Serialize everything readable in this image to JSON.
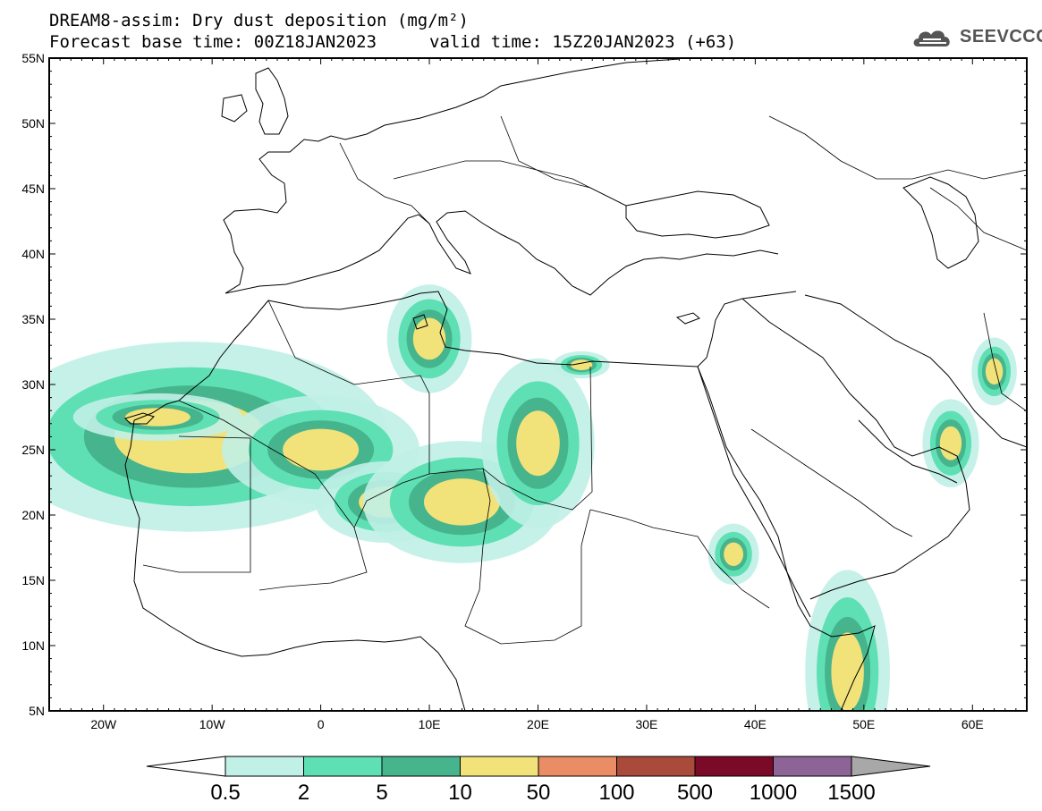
{
  "title": {
    "line1": "DREAM8-assim: Dry dust deposition (mg/m²)",
    "base": "Forecast base time: 00Z18JAN2023",
    "valid": "valid time: 15Z20JAN2023 (+63)"
  },
  "logo": {
    "text": "SEEVCCC",
    "icon": "cloud-logo-icon"
  },
  "map": {
    "projection": "lat-lon",
    "lon_range": [
      -25,
      65
    ],
    "lat_range": [
      5,
      55
    ],
    "lat_ticks": [
      "5N",
      "10N",
      "15N",
      "20N",
      "25N",
      "30N",
      "35N",
      "40N",
      "45N",
      "50N",
      "55N"
    ],
    "lat_values": [
      5,
      10,
      15,
      20,
      25,
      30,
      35,
      40,
      45,
      50,
      55
    ],
    "lon_ticks": [
      "20W",
      "10W",
      "0",
      "10E",
      "20E",
      "30E",
      "40E",
      "50E",
      "60E"
    ],
    "lon_values": [
      -20,
      -10,
      0,
      10,
      20,
      30,
      40,
      50,
      60
    ]
  },
  "colorbar": {
    "labels": [
      "0.5",
      "2",
      "5",
      "10",
      "50",
      "100",
      "500",
      "1000",
      "1500"
    ],
    "colors": [
      "#c0f0e6",
      "#5ee0b4",
      "#46b48c",
      "#f2e27a",
      "#ea8c64",
      "#aa4a3a",
      "#7a0a28",
      "#8c6496"
    ],
    "under_color": "#ffffff",
    "over_color": "#a8a8a8"
  },
  "dust_fields": [
    {
      "name": "west-sahara",
      "lon": -12,
      "lat": 26,
      "rx": 7,
      "ry": 2.8,
      "level": 3
    },
    {
      "name": "canary",
      "lon": -15,
      "lat": 27.5,
      "rx": 3,
      "ry": 0.7,
      "level": 3
    },
    {
      "name": "algeria-east",
      "lon": 0,
      "lat": 25,
      "rx": 3.5,
      "ry": 1.6,
      "level": 3
    },
    {
      "name": "tunisia",
      "lon": 10,
      "lat": 33.5,
      "rx": 1.5,
      "ry": 1.6,
      "level": 3
    },
    {
      "name": "niger-air",
      "lon": 6,
      "lat": 21,
      "rx": 2.5,
      "ry": 1.2,
      "level": 3
    },
    {
      "name": "tibesti",
      "lon": 13,
      "lat": 21,
      "rx": 3.5,
      "ry": 1.8,
      "level": 3
    },
    {
      "name": "libya-east",
      "lon": 20,
      "lat": 25.5,
      "rx": 2,
      "ry": 2.5,
      "level": 3
    },
    {
      "name": "libya-coast",
      "lon": 24,
      "lat": 31.5,
      "rx": 1,
      "ry": 0.4,
      "level": 3
    },
    {
      "name": "red-sea-eritrea",
      "lon": 38,
      "lat": 17,
      "rx": 0.9,
      "ry": 0.9,
      "level": 3
    },
    {
      "name": "somalia",
      "lon": 48.5,
      "lat": 8,
      "rx": 1.5,
      "ry": 3,
      "level": 3
    },
    {
      "name": "iran-south",
      "lon": 58,
      "lat": 25.5,
      "rx": 1,
      "ry": 1.3,
      "level": 3
    },
    {
      "name": "afghanistan",
      "lon": 62,
      "lat": 31,
      "rx": 0.8,
      "ry": 1,
      "level": 3
    }
  ]
}
